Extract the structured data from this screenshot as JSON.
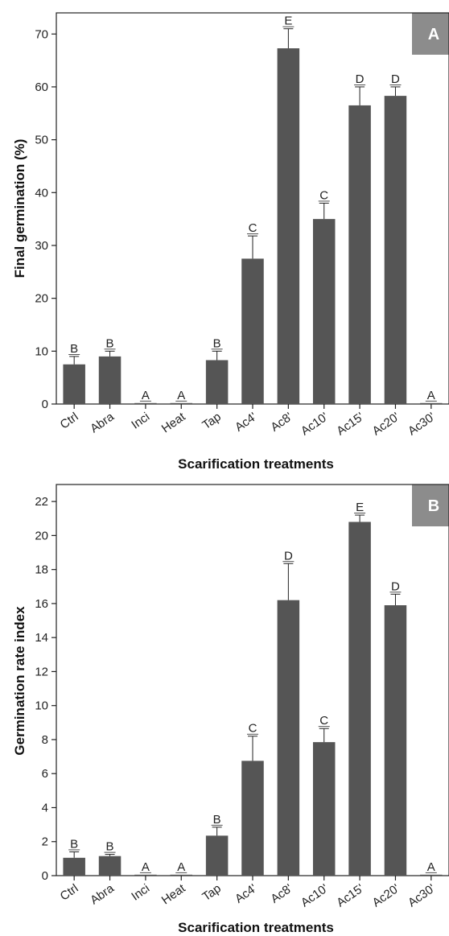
{
  "colors": {
    "bar": "#555555",
    "axis": "#222222",
    "panel_label_bg": "#8c8c8c",
    "panel_label_text": "#ffffff"
  },
  "chart_data": [
    {
      "type": "bar",
      "panel_label": "A",
      "ylabel": "Final germination (%)",
      "xlabel": "Scarification treatments",
      "categories": [
        "Ctrl",
        "Abra",
        "Inci",
        "Heat",
        "Tap",
        "Ac4'",
        "Ac8'",
        "Ac10'",
        "Ac15'",
        "Ac20'",
        "Ac30'"
      ],
      "values": [
        7.5,
        9.0,
        0.15,
        0.1,
        8.3,
        27.5,
        67.3,
        35.0,
        56.5,
        58.3,
        0.1
      ],
      "errors": [
        1.5,
        1.0,
        0,
        0,
        1.7,
        4.3,
        3.7,
        3.0,
        3.5,
        1.7,
        0
      ],
      "significance": [
        "B",
        "B",
        "A",
        "A",
        "B",
        "C",
        "E",
        "C",
        "D",
        "D",
        "A"
      ],
      "ylim": [
        0,
        74
      ],
      "yticks": [
        0,
        10,
        20,
        30,
        40,
        50,
        60,
        70
      ],
      "grid": false
    },
    {
      "type": "bar",
      "panel_label": "B",
      "ylabel": "Germination rate index",
      "xlabel": "Scarification treatments",
      "categories": [
        "Ctrl",
        "Abra",
        "Inci",
        "Heat",
        "Tap",
        "Ac4'",
        "Ac8'",
        "Ac10'",
        "Ac15'",
        "Ac20'",
        "Ac30'"
      ],
      "values": [
        1.05,
        1.15,
        0.03,
        0.02,
        2.35,
        6.75,
        16.2,
        7.85,
        20.8,
        15.9,
        0.02
      ],
      "errors": [
        0.35,
        0.1,
        0,
        0,
        0.5,
        1.45,
        2.15,
        0.8,
        0.4,
        0.65,
        0
      ],
      "significance": [
        "B",
        "B",
        "A",
        "A",
        "B",
        "C",
        "D",
        "C",
        "E",
        "D",
        "A"
      ],
      "ylim": [
        0,
        23
      ],
      "yticks": [
        0,
        2,
        4,
        6,
        8,
        10,
        12,
        14,
        16,
        18,
        20,
        22
      ],
      "grid": false
    }
  ]
}
